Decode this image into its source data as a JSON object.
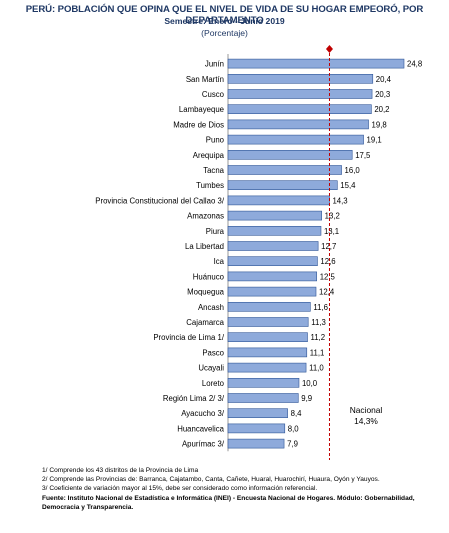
{
  "header": {
    "title": "PERÚ: POBLACIÓN QUE OPINA QUE EL NIVEL DE VIDA DE SU HOGAR EMPEORÓ, POR DEPARTAMENTO",
    "subtitle": "Semestre: Enero - Junio 2019",
    "unit": "(Porcentaje)"
  },
  "chart_data": {
    "type": "bar",
    "orientation": "horizontal",
    "categories": [
      "Junín",
      "San Martín",
      "Cusco",
      "Lambayeque",
      "Madre de Dios",
      "Puno",
      "Arequipa",
      "Tacna",
      "Tumbes",
      "Provincia Constitucional del Callao 3/",
      "Amazonas",
      "Piura",
      "La Libertad",
      "Ica",
      "Huánuco",
      "Moquegua",
      "Ancash",
      "Cajamarca",
      "Provincia de Lima 1/",
      "Pasco",
      "Ucayali",
      "Loreto",
      "Región Lima 2/ 3/",
      "Ayacucho 3/",
      "Huancavelica",
      "Apurímac 3/"
    ],
    "values": [
      24.8,
      20.4,
      20.3,
      20.2,
      19.8,
      19.1,
      17.5,
      16.0,
      15.4,
      14.3,
      13.2,
      13.1,
      12.7,
      12.6,
      12.5,
      12.4,
      11.6,
      11.3,
      11.2,
      11.1,
      11.0,
      10.0,
      9.9,
      8.4,
      8.0,
      7.9
    ],
    "value_labels": [
      "24,8",
      "20,4",
      "20,3",
      "20,2",
      "19,8",
      "19,1",
      "17,5",
      "16,0",
      "15,4",
      "14,3",
      "13,2",
      "13,1",
      "12,7",
      "12,6",
      "12,5",
      "12,4",
      "11,6",
      "11,3",
      "11,2",
      "11,1",
      "11,0",
      "10,0",
      "9,9",
      "8,4",
      "8,0",
      "7,9"
    ],
    "xlim": [
      0,
      26
    ],
    "reference_line": {
      "value": 14.3,
      "label_line1": "Nacional",
      "label_line2": "14,3%",
      "color": "#c00000"
    },
    "bar_color": "#8eaadb",
    "bar_border": "#2f5597",
    "grid": false
  },
  "footnotes": {
    "n1": "1/ Comprende los 43 distritos de la Provincia de Lima",
    "n2": "2/ Comprende las Provincias de: Barranca, Cajatambo, Canta, Cañete, Huaral, Huarochirí, Huaura, Oyón y Yauyos.",
    "n3": "3/ Coeficiente de variación mayor al 15%, debe ser considerado como información referencial.",
    "source": "Fuente: Instituto Nacional de Estadística e Informática (INEI) - Encuesta Nacional de Hogares. Módulo: Gobernabilidad, Democracia y Transparencia."
  }
}
